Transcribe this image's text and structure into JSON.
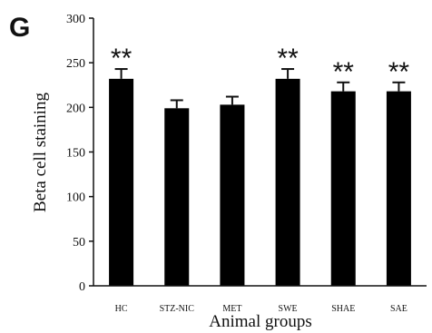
{
  "chart_data": {
    "panel_label": "G",
    "type": "bar",
    "title": "",
    "xlabel": "Animal groups",
    "ylabel": "Beta cell staining",
    "ylim": [
      0,
      300
    ],
    "yticks": [
      0,
      50,
      100,
      150,
      200,
      250,
      300
    ],
    "categories": [
      "HC",
      "STZ-NIC",
      "MET",
      "SWE",
      "SHAE",
      "SAE"
    ],
    "values": [
      232,
      199,
      203,
      232,
      218,
      218
    ],
    "errors": [
      11,
      9,
      9,
      11,
      10,
      10
    ],
    "annotations": [
      "**",
      "",
      "",
      "**",
      "**",
      "**"
    ],
    "bar_color": "#000000"
  }
}
